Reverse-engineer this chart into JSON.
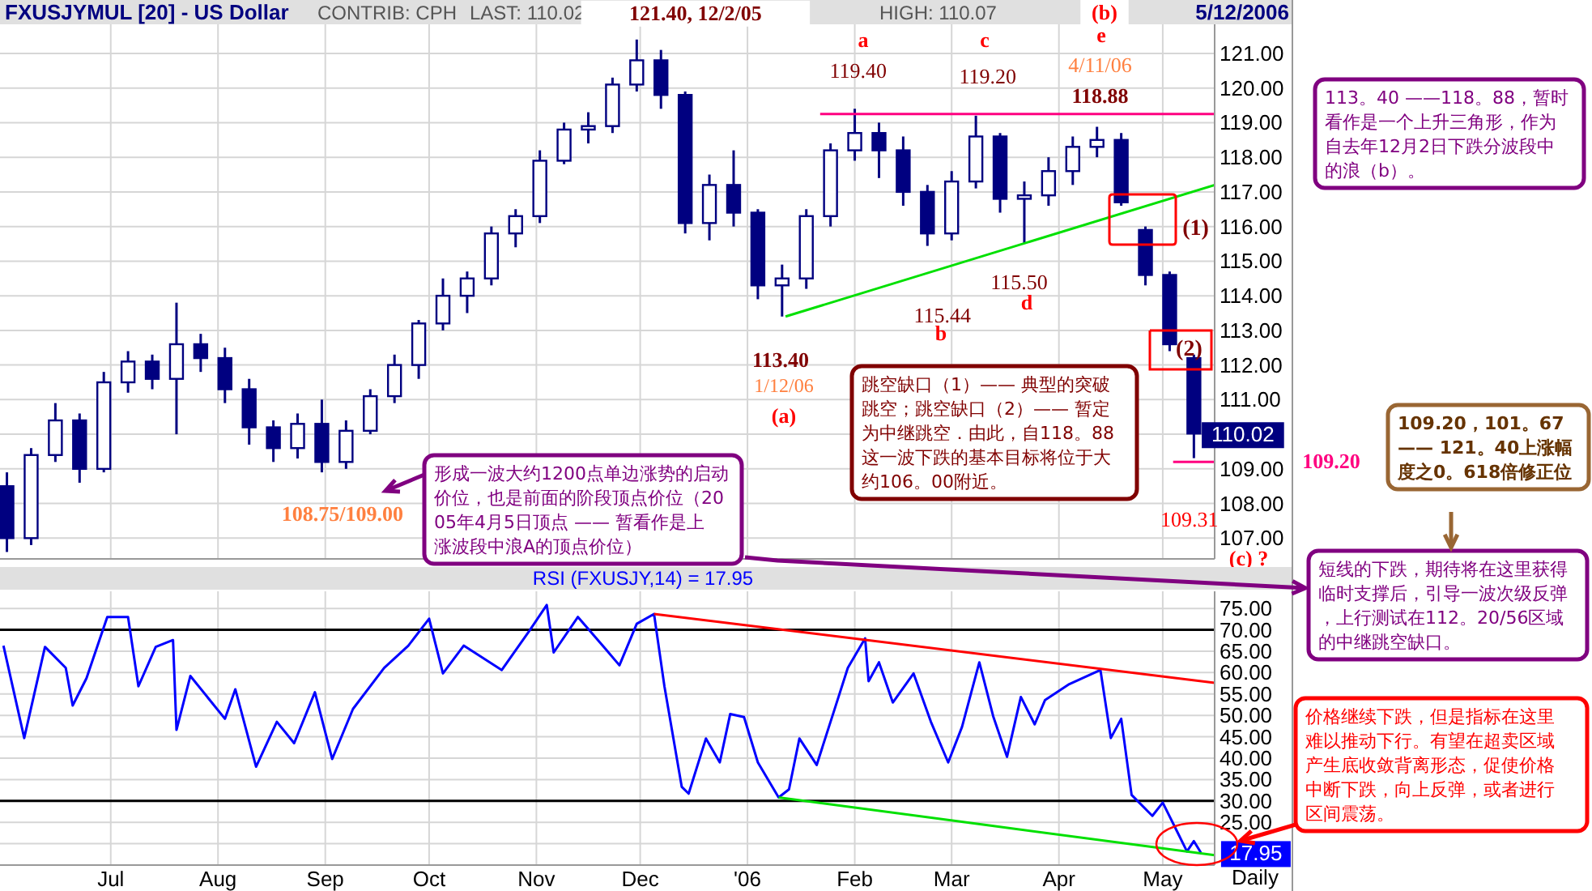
{
  "chart_data": [
    {
      "type": "candlestick",
      "title": "FXUSJYMUL [20] - US Dollar",
      "xlim": [
        "2005-05-30",
        "2006-05-16"
      ],
      "xticks": [
        {
          "value": "2005-07-01",
          "label": null
        },
        {
          "value": "2005-08-01",
          "label": null
        },
        {
          "value": "2005-09-01",
          "label": null
        },
        {
          "value": "2005-10-01",
          "label": null
        },
        {
          "value": "2005-11-01",
          "label": null
        },
        {
          "value": "2005-12-01",
          "label": null
        },
        {
          "value": "2006-01-01",
          "label": null
        },
        {
          "value": "2006-02-01",
          "label": null
        },
        {
          "value": "2006-03-01",
          "label": null
        },
        {
          "value": "2006-04-01",
          "label": null
        },
        {
          "value": "2006-05-01",
          "label": null
        }
      ],
      "ylim": [
        106.4,
        121.84
      ],
      "yticks": [
        {
          "value": 107,
          "label": "107.00"
        },
        {
          "value": 108,
          "label": "108.00"
        },
        {
          "value": 109,
          "label": "109.00"
        },
        {
          "value": 110,
          "label": null
        },
        {
          "value": 111,
          "label": "111.00"
        },
        {
          "value": 112,
          "label": "112.00"
        },
        {
          "value": 113,
          "label": "113.00"
        },
        {
          "value": 114,
          "label": "114.00"
        },
        {
          "value": 115,
          "label": "115.00"
        },
        {
          "value": 116,
          "label": "116.00"
        },
        {
          "value": 117,
          "label": "117.00"
        },
        {
          "value": 118,
          "label": "118.00"
        },
        {
          "value": 119,
          "label": "119.00"
        },
        {
          "value": 120,
          "label": "120.00"
        },
        {
          "value": 121,
          "label": "121.00"
        }
      ],
      "tick_labels": "y",
      "grid": true,
      "series": [
        {
          "color": "#000080",
          "x": [
            "2005-06-01",
            "2005-06-08",
            "2005-06-15",
            "2005-06-22",
            "2005-06-29",
            "2005-07-06",
            "2005-07-13",
            "2005-07-20",
            "2005-07-27",
            "2005-08-03",
            "2005-08-10",
            "2005-08-17",
            "2005-08-24",
            "2005-08-31",
            "2005-09-07",
            "2005-09-14",
            "2005-09-21",
            "2005-09-28",
            "2005-10-05",
            "2005-10-12",
            "2005-10-19",
            "2005-10-26",
            "2005-11-02",
            "2005-11-09",
            "2005-11-16",
            "2005-11-23",
            "2005-11-30",
            "2005-12-07",
            "2005-12-14",
            "2005-12-21",
            "2005-12-28",
            "2006-01-04",
            "2006-01-11",
            "2006-01-18",
            "2006-01-25",
            "2006-02-01",
            "2006-02-08",
            "2006-02-15",
            "2006-02-22",
            "2006-03-01",
            "2006-03-08",
            "2006-03-15",
            "2006-03-22",
            "2006-03-29",
            "2006-04-05",
            "2006-04-12",
            "2006-04-19",
            "2006-04-26",
            "2006-05-03",
            "2006-05-10"
          ],
          "ohlc": [
            [
              108.5,
              108.9,
              106.6,
              107.0
            ],
            [
              107.0,
              109.6,
              106.8,
              109.4
            ],
            [
              109.4,
              110.9,
              109.2,
              110.4
            ],
            [
              110.4,
              110.6,
              108.6,
              109.0
            ],
            [
              109.0,
              111.8,
              108.9,
              111.5
            ],
            [
              111.5,
              112.4,
              111.2,
              112.1
            ],
            [
              112.1,
              112.3,
              111.3,
              111.6
            ],
            [
              111.6,
              113.8,
              110.0,
              112.6
            ],
            [
              112.6,
              112.9,
              111.8,
              112.2
            ],
            [
              112.2,
              112.5,
              110.9,
              111.3
            ],
            [
              111.3,
              111.6,
              109.7,
              110.2
            ],
            [
              110.2,
              110.4,
              109.2,
              109.6
            ],
            [
              109.6,
              110.6,
              109.3,
              110.3
            ],
            [
              110.3,
              111.0,
              108.9,
              109.2
            ],
            [
              109.2,
              110.4,
              109.0,
              110.1
            ],
            [
              110.1,
              111.3,
              110.0,
              111.1
            ],
            [
              111.1,
              112.3,
              110.9,
              112.0
            ],
            [
              112.0,
              113.3,
              111.6,
              113.2
            ],
            [
              113.2,
              114.5,
              113.0,
              114.0
            ],
            [
              114.0,
              114.7,
              113.5,
              114.5
            ],
            [
              114.5,
              116.0,
              114.3,
              115.8
            ],
            [
              115.8,
              116.5,
              115.4,
              116.3
            ],
            [
              116.3,
              118.2,
              116.1,
              117.9
            ],
            [
              117.9,
              119.0,
              117.8,
              118.8
            ],
            [
              118.8,
              119.3,
              118.4,
              118.9
            ],
            [
              118.9,
              120.3,
              118.7,
              120.1
            ],
            [
              120.1,
              121.4,
              119.9,
              120.8
            ],
            [
              120.8,
              121.1,
              119.4,
              119.8
            ],
            [
              119.8,
              119.9,
              115.8,
              116.1
            ],
            [
              116.1,
              117.5,
              115.6,
              117.2
            ],
            [
              117.2,
              118.2,
              116.0,
              116.4
            ],
            [
              116.4,
              116.5,
              113.9,
              114.3
            ],
            [
              114.3,
              114.9,
              113.4,
              114.5
            ],
            [
              114.5,
              116.5,
              114.2,
              116.3
            ],
            [
              116.3,
              118.4,
              116.0,
              118.2
            ],
            [
              118.2,
              119.4,
              117.9,
              118.7
            ],
            [
              118.7,
              119.0,
              117.4,
              118.2
            ],
            [
              118.2,
              118.6,
              116.6,
              117.0
            ],
            [
              117.0,
              117.2,
              115.44,
              115.8
            ],
            [
              115.8,
              117.6,
              115.6,
              117.3
            ],
            [
              117.3,
              119.2,
              117.1,
              118.6
            ],
            [
              118.6,
              118.7,
              116.4,
              116.8
            ],
            [
              116.8,
              117.3,
              115.5,
              116.9
            ],
            [
              116.9,
              118.0,
              116.6,
              117.6
            ],
            [
              117.6,
              118.6,
              117.2,
              118.3
            ],
            [
              118.3,
              118.88,
              118.0,
              118.5
            ],
            [
              118.5,
              118.7,
              116.6,
              116.7
            ],
            [
              115.9,
              116.0,
              114.3,
              114.6
            ],
            [
              114.6,
              114.7,
              112.4,
              112.6
            ],
            [
              112.2,
              112.3,
              109.31,
              110.02
            ]
          ]
        },
        {
          "type": "line",
          "color": "#00e000",
          "x": [
            "2006-01-12",
            "2006-05-16"
          ],
          "values": [
            113.4,
            117.2
          ]
        },
        {
          "type": "line",
          "color": "#ff0080",
          "x": [
            "2006-01-22",
            "2006-05-16"
          ],
          "values": [
            119.25,
            119.25
          ]
        },
        {
          "type": "line",
          "color": "#ff0080",
          "x": [
            "2006-05-04",
            "2006-05-16"
          ],
          "values": [
            109.2,
            109.2
          ]
        }
      ],
      "annotations": [
        "CONTRIB: CPH",
        "LAST: 110.02",
        "HIGH: 110.07",
        "5/12/2006",
        "113。40 ——118。88，暂时看作是一个上升三角形，作为自去年12月2日下跌分波段中的浪（b）。",
        "形成一波大约1200点单边涨势的启动价位，也是前面的阶段顶点价位（2005年4月5日顶点 —— 暂看作是上涨波段中浪A的顶点价位）",
        "跳空缺口（1）—— 典型的突破跳空；跳空缺口（2）—— 暂定为中继跳空．由此，自118。88这一波下跌的基本目标将位于大约106。00附近。",
        "109.20，101。67 —— 121。40上涨幅度之0。618倍修正位",
        "短线的下跌，期待将在这里获得临时支撑后，引导一波次级反弹，上行测试在112。20/56区域的中继跳空缺口。",
        "(c)  ?",
        "a",
        "c",
        "e",
        "(b)",
        "1/12/06",
        "(a)",
        "b",
        "d",
        "109.20",
        {
          "text": "121.40,  12/2/05",
          "x": "2005-12-02",
          "y": 121.4
        },
        {
          "text": "119.40",
          "x": "2006-02-02",
          "y": 119.4
        },
        {
          "text": "119.20",
          "x": "2006-03-10",
          "y": 119.2
        },
        {
          "text": "4/11/06",
          "x": "2006-04-11",
          "y": 118.88
        },
        {
          "text": "118.88",
          "x": "2006-04-11",
          "y": 118.88
        },
        {
          "text": "113.40",
          "x": "2006-01-12",
          "y": 113.4
        },
        {
          "text": "115.44",
          "x": "2006-02-24",
          "y": 115.44
        },
        {
          "text": "115.50",
          "x": "2006-03-20",
          "y": 115.5
        },
        {
          "text": "(1)",
          "x": "2006-04-26",
          "y": 116
        },
        {
          "text": "(2)",
          "x": "2006-05-03",
          "y": 112.5
        },
        {
          "text": "109.31",
          "x": "2006-05-11",
          "y": 109.31
        },
        {
          "text": "108.75/109.00",
          "x": "2005-09-05",
          "y": 108.9
        },
        {
          "text": "110.02",
          "x": "2006-05-12",
          "y": 110.02
        }
      ]
    },
    {
      "type": "line",
      "title": "RSI (FXUSJY,14) = 17.95",
      "xlim": [
        "2005-05-30",
        "2006-05-16"
      ],
      "xticks": [
        {
          "value": "2005-07-01",
          "label": "Jul"
        },
        {
          "value": "2005-08-01",
          "label": "Aug"
        },
        {
          "value": "2005-09-01",
          "label": "Sep"
        },
        {
          "value": "2005-10-01",
          "label": "Oct"
        },
        {
          "value": "2005-11-01",
          "label": "Nov"
        },
        {
          "value": "2005-12-01",
          "label": "Dec"
        },
        {
          "value": "2006-01-01",
          "label": "'06"
        },
        {
          "value": "2006-02-01",
          "label": "Feb"
        },
        {
          "value": "2006-03-01",
          "label": "Mar"
        },
        {
          "value": "2006-04-01",
          "label": "Apr"
        },
        {
          "value": "2006-05-01",
          "label": "May"
        }
      ],
      "ylim": [
        15,
        79
      ],
      "yticks": [
        {
          "value": 20,
          "label": null
        },
        {
          "value": 25,
          "label": "25.00"
        },
        {
          "value": 30,
          "label": "30.00"
        },
        {
          "value": 35,
          "label": "35.00"
        },
        {
          "value": 40,
          "label": "40.00"
        },
        {
          "value": 45,
          "label": "45.00"
        },
        {
          "value": 50,
          "label": "50.00"
        },
        {
          "value": 55,
          "label": "55.00"
        },
        {
          "value": 60,
          "label": "60.00"
        },
        {
          "value": 65,
          "label": "65.00"
        },
        {
          "value": 70,
          "label": "70.00"
        },
        {
          "value": 75,
          "label": "75.00"
        }
      ],
      "grid": true,
      "series": [
        {
          "color": "#000000",
          "x": [
            "2005-05-30",
            "2006-05-16"
          ],
          "values": [
            70,
            70
          ]
        },
        {
          "color": "#000000",
          "x": [
            "2005-05-30",
            "2006-05-16"
          ],
          "values": [
            30,
            30
          ]
        },
        {
          "color": "#0000ff",
          "x": [
            "2005-05-31",
            "2005-06-06",
            "2005-06-12",
            "2005-06-18",
            "2005-06-20",
            "2005-06-24",
            "2005-06-30",
            "2005-07-06",
            "2005-07-09",
            "2005-07-14",
            "2005-07-19",
            "2005-07-20",
            "2005-07-24",
            "2005-08-03",
            "2005-08-06",
            "2005-08-12",
            "2005-08-18",
            "2005-08-23",
            "2005-08-29",
            "2005-09-03",
            "2005-09-09",
            "2005-09-18",
            "2005-09-25",
            "2005-10-01",
            "2005-10-05",
            "2005-10-11",
            "2005-10-22",
            "2005-10-30",
            "2005-11-04",
            "2005-11-06",
            "2005-11-13",
            "2005-11-21",
            "2005-11-25",
            "2005-11-30",
            "2005-12-05",
            "2005-12-08",
            "2005-12-13",
            "2005-12-15",
            "2005-12-20",
            "2005-12-24",
            "2005-12-27",
            "2005-12-31",
            "2006-01-04",
            "2006-01-10",
            "2006-01-13",
            "2006-01-16",
            "2006-01-21",
            "2006-01-26",
            "2006-01-30",
            "2006-02-04",
            "2006-02-05",
            "2006-02-08",
            "2006-02-12",
            "2006-02-18",
            "2006-02-23",
            "2006-02-28",
            "2006-03-04",
            "2006-03-09",
            "2006-03-13",
            "2006-03-17",
            "2006-03-21",
            "2006-03-25",
            "2006-03-28",
            "2006-04-04",
            "2006-04-13",
            "2006-04-16",
            "2006-04-19",
            "2006-04-22",
            "2006-04-28",
            "2006-05-01",
            "2006-05-05",
            "2006-05-08",
            "2006-05-10",
            "2006-05-12"
          ],
          "values": [
            66.3,
            44.7,
            66,
            61.1,
            52.3,
            58.7,
            73,
            73,
            56.8,
            66,
            67.6,
            46.6,
            59.2,
            49.2,
            56.1,
            38,
            48.5,
            43.5,
            55.4,
            39.8,
            51.5,
            61.1,
            66.3,
            72.6,
            59.8,
            66.3,
            60.6,
            69.8,
            75.8,
            64.7,
            73,
            65.5,
            61.7,
            71.4,
            73.7,
            56.8,
            33.3,
            31.7,
            44.6,
            39,
            50.3,
            49.6,
            39,
            30.8,
            32.7,
            44.6,
            38.4,
            51,
            61.1,
            68,
            58,
            62.4,
            53,
            59.8,
            48.5,
            39,
            47.3,
            62.4,
            49.8,
            40.3,
            54.3,
            47.9,
            53.6,
            57.3,
            60.6,
            44.7,
            49.2,
            31.4,
            26.5,
            29.6,
            23.1,
            18.2,
            20.6,
            17.95
          ]
        },
        {
          "color": "#ff0000",
          "x": [
            "2005-12-05",
            "2006-05-16"
          ],
          "values": [
            73.7,
            57.6
          ]
        },
        {
          "color": "#00e000",
          "x": [
            "2006-01-10",
            "2006-05-16"
          ],
          "values": [
            30.8,
            17.3
          ]
        }
      ],
      "annotations": [
        "Daily",
        "价格继续下跌，但是指标在这里难以推动下行。有望在超卖区域产生底收敛背离形态，促使价格中断下跌，向上反弹，或者进行区间震荡。",
        {
          "text": "17.95",
          "x": "2006-05-12",
          "y": 17.95
        }
      ]
    }
  ]
}
